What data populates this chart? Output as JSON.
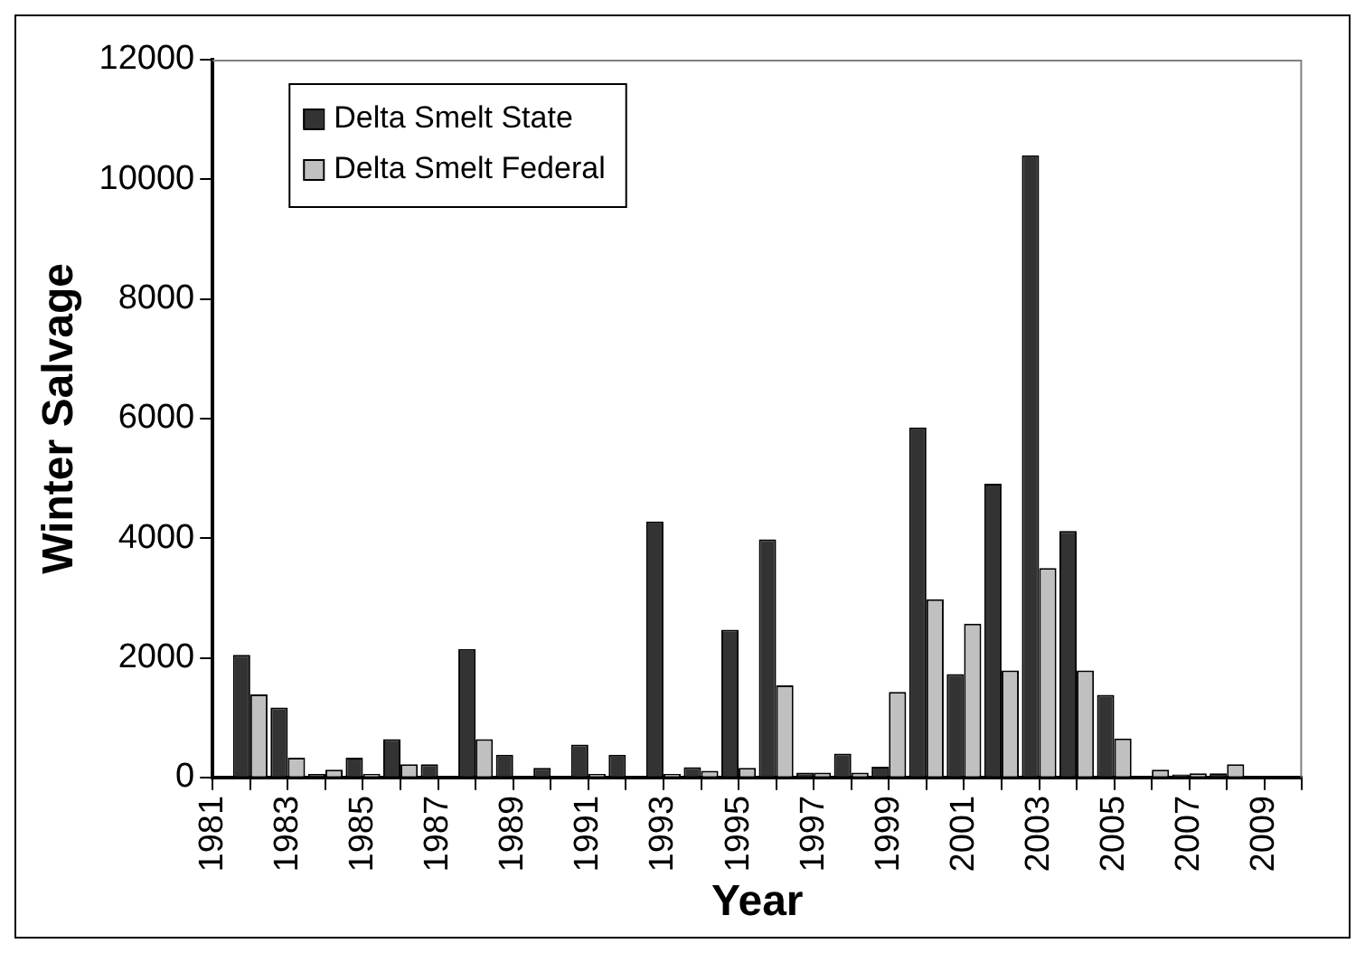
{
  "chart_data": {
    "type": "bar",
    "xlabel": "Year",
    "ylabel": "Winter Salvage",
    "categories": [
      "1981",
      null,
      "1983",
      null,
      "1985",
      null,
      "1987",
      null,
      "1989",
      null,
      "1991",
      null,
      "1993",
      null,
      "1995",
      null,
      "1997",
      null,
      "1999",
      null,
      "2001",
      null,
      "2003",
      null,
      "2005",
      null,
      "2007",
      null,
      "2009",
      null
    ],
    "series": [
      {
        "name": "Delta Smelt State",
        "color": "#333333",
        "values": [
          null,
          2050,
          1170,
          60,
          330,
          640,
          220,
          2150,
          380,
          160,
          550,
          380,
          4280,
          170,
          2470,
          3980,
          80,
          400,
          180,
          5850,
          1730,
          4910,
          10400,
          4120,
          1380,
          null,
          50,
          70,
          null,
          null
        ]
      },
      {
        "name": "Delta Smelt Federal",
        "color": "#c0c0c0",
        "values": [
          null,
          1390,
          330,
          130,
          60,
          220,
          null,
          640,
          null,
          null,
          60,
          null,
          60,
          110,
          160,
          1540,
          80,
          80,
          1430,
          2980,
          2570,
          1790,
          3500,
          1790,
          650,
          130,
          70,
          220,
          null,
          null
        ]
      }
    ],
    "ylim": [
      0,
      12000
    ],
    "yticks": [
      0,
      2000,
      4000,
      6000,
      8000,
      10000,
      12000
    ],
    "grid": false,
    "legend": "top left"
  }
}
